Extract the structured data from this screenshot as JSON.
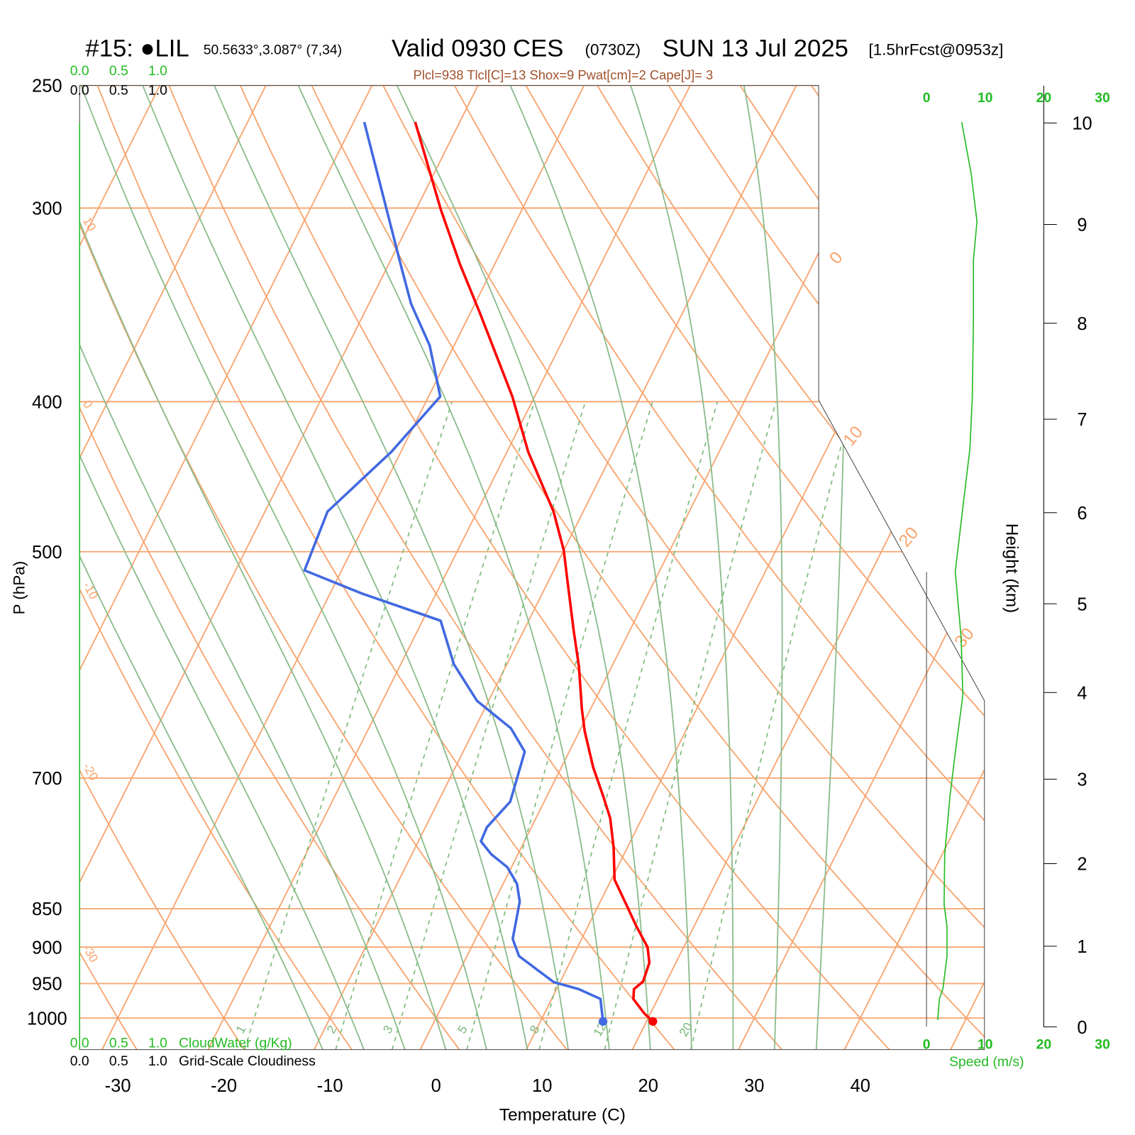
{
  "chart_data": [
    {
      "type": "skewt",
      "station": "#15: ●LIL",
      "location": "50.5633°,3.087° (7,34)",
      "valid": "Valid 0930 CES",
      "zulu": "(0730Z)",
      "date": "SUN 13 Jul 2025",
      "forecast": "[1.5hrFcst@0953z]",
      "subtitle": "Plcl=938 Tlcl[C]=13 Shox=9 Pwat[cm]=2 Cape[J]= 3",
      "ylabel": "P (hPa)",
      "xlabel": "Temperature (C)",
      "y2label": "Height (km)",
      "log_y": true,
      "ylim": [
        1048,
        250
      ],
      "yticks": [
        250,
        300,
        400,
        500,
        700,
        850,
        900,
        950,
        1000
      ],
      "xlim": [
        -33.6,
        51.7
      ],
      "xticks": [
        -30,
        -20,
        -10,
        0,
        10,
        20,
        30,
        40
      ],
      "y2lim": [
        0,
        10.36
      ],
      "y2ticks": [
        0,
        1,
        2,
        3,
        4,
        5,
        6,
        7,
        8,
        9,
        10
      ],
      "isotherm_labels": [
        0,
        10,
        20,
        30
      ],
      "dry_adiabats": [
        10,
        0,
        -10,
        -20,
        -30
      ],
      "mixing_ratios": [
        1,
        2,
        3,
        5,
        8,
        12,
        20
      ],
      "cloudwater": {
        "label": "CloudWater (g/Kg)",
        "color": "#22bb22",
        "ticks": [
          {
            "value": 0,
            "label": "0.0"
          },
          {
            "value": 0.5,
            "label": "0.5"
          },
          {
            "value": 1,
            "label": "1.0"
          }
        ]
      },
      "cloudiness": {
        "label": "Grid-Scale Cloudiness",
        "color": "#000000",
        "ticks": [
          {
            "value": 0,
            "label": "0.0"
          },
          {
            "value": 0.5,
            "label": "0.5"
          },
          {
            "value": 1,
            "label": "1.0"
          }
        ]
      },
      "series": [
        {
          "color": "#ff0000",
          "pressure": [
            1005,
            993,
            972,
            958,
            947,
            921,
            900,
            873,
            845,
            814,
            776,
            743,
            719,
            689,
            653,
            632,
            593,
            562,
            521,
            499,
            471,
            431,
            397,
            350,
            326,
            301,
            264
          ],
          "temperature": [
            20.6,
            19.4,
            17.7,
            17.3,
            17.8,
            17.5,
            16.6,
            14.6,
            12.6,
            10.3,
            8.7,
            7.0,
            5.3,
            3.0,
            0.5,
            -0.8,
            -3.1,
            -5.3,
            -8.3,
            -10.0,
            -12.8,
            -18.0,
            -22.1,
            -29.2,
            -33.3,
            -37.6,
            -44.2
          ]
        },
        {
          "color": "#4169e1",
          "pressure": [
            1005,
            972,
            958,
            948,
            912,
            889,
            841,
            819,
            799,
            784,
            769,
            753,
            725,
            673,
            650,
            624,
            591,
            554,
            532,
            514,
            471,
            431,
            397,
            368,
            346,
            328,
            264
          ],
          "temperature": [
            15.9,
            14.6,
            12.1,
            9.4,
            4.9,
            3.5,
            2.4,
            1.3,
            -0.4,
            -2.5,
            -4.1,
            -4.2,
            -3.2,
            -4.2,
            -6.6,
            -11.1,
            -15.0,
            -18.3,
            -27.0,
            -33.5,
            -34.1,
            -30.9,
            -28.9,
            -32.3,
            -36.0,
            -38.6,
            -49.0
          ]
        }
      ]
    },
    {
      "type": "wind",
      "xlabel": "Speed (m/s)",
      "xlim": [
        0,
        30
      ],
      "xticks": [
        0,
        10,
        20,
        30
      ],
      "series": [
        {
          "color": "#22bb22",
          "pressure": [
            1003,
            972,
            957,
            912,
            873,
            845,
            784,
            719,
            674,
            619,
            568,
            515,
            468,
            429,
            398,
            354,
            324,
            306,
            285,
            264
          ],
          "speed": [
            1.9,
            2.2,
            2.8,
            3.5,
            3.5,
            3.0,
            3.1,
            4.0,
            4.9,
            6.2,
            5.9,
            4.9,
            6.2,
            7.4,
            7.8,
            8.0,
            8.0,
            8.6,
            7.6,
            6.0
          ]
        }
      ]
    }
  ]
}
